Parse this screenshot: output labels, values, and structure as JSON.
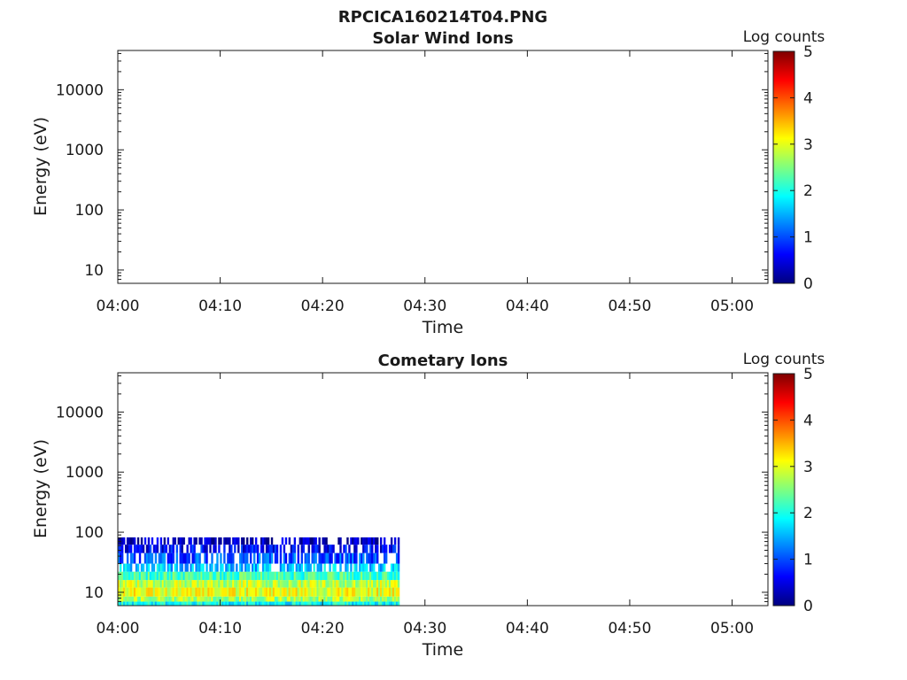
{
  "figure_title": "RPCICA160214T04.PNG",
  "colormap_stops": [
    "#00007f",
    "#0000ff",
    "#007fff",
    "#00ffff",
    "#7fff7f",
    "#ffff00",
    "#ff7f00",
    "#ff0000",
    "#7f0000"
  ],
  "chart_data": [
    {
      "type": "heatmap",
      "title": "Solar Wind Ions",
      "xlabel": "Time",
      "ylabel": "Energy (eV)",
      "x_ticks": [
        "04:00",
        "04:10",
        "04:20",
        "04:30",
        "04:40",
        "04:50",
        "05:00"
      ],
      "x_range_minutes": [
        0,
        63.5
      ],
      "y_scale": "log",
      "y_ticks": [
        10,
        100,
        1000,
        10000
      ],
      "y_tick_labels": [
        "10",
        "100",
        "1000",
        "10000"
      ],
      "y_range": [
        6,
        45000
      ],
      "colorbar_label": "Log counts",
      "colorbar_range": [
        0,
        5
      ],
      "colorbar_ticks": [
        "0",
        "1",
        "2",
        "3",
        "4",
        "5"
      ],
      "data": []
    },
    {
      "type": "heatmap",
      "title": "Cometary Ions",
      "xlabel": "Time",
      "ylabel": "Energy (eV)",
      "x_ticks": [
        "04:00",
        "04:10",
        "04:20",
        "04:30",
        "04:40",
        "04:50",
        "05:00"
      ],
      "x_range_minutes": [
        0,
        63.5
      ],
      "y_scale": "log",
      "y_ticks": [
        10,
        100,
        1000,
        10000
      ],
      "y_tick_labels": [
        "10",
        "100",
        "1000",
        "10000"
      ],
      "y_range": [
        6,
        45000
      ],
      "colorbar_label": "Log counts",
      "colorbar_range": [
        0,
        5
      ],
      "colorbar_ticks": [
        "0",
        "1",
        "2",
        "3",
        "4",
        "5"
      ],
      "data_time_range_minutes": [
        0,
        27.5
      ],
      "data": [
        {
          "e_min": 6,
          "e_max": 7,
          "log_counts": 1.9
        },
        {
          "e_min": 7,
          "e_max": 8.5,
          "log_counts": 2.7
        },
        {
          "e_min": 8.5,
          "e_max": 12,
          "log_counts": 3.0
        },
        {
          "e_min": 12,
          "e_max": 16,
          "log_counts": 2.8
        },
        {
          "e_min": 16,
          "e_max": 22,
          "log_counts": 2.2
        },
        {
          "e_min": 22,
          "e_max": 30,
          "log_counts": 1.6
        },
        {
          "e_min": 30,
          "e_max": 45,
          "log_counts": 1.0
        },
        {
          "e_min": 45,
          "e_max": 62,
          "log_counts": 0.6
        },
        {
          "e_min": 62,
          "e_max": 82,
          "log_counts": 0.3
        }
      ]
    }
  ]
}
